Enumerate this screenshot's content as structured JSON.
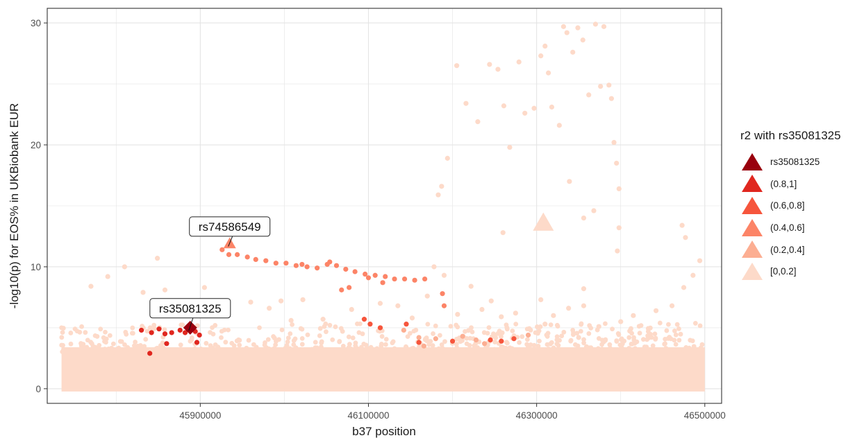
{
  "chart_data": {
    "type": "scatter",
    "xlabel": "b37 position",
    "ylabel": "-log10(p) for EOS% in UKBiobank EUR",
    "xlim": [
      45718000,
      46520000
    ],
    "ylim": [
      -1.2,
      31.2
    ],
    "x_ticks": [
      45900000,
      46100000,
      46300000,
      46500000
    ],
    "y_ticks": [
      0,
      10,
      20,
      30
    ],
    "grid": true,
    "legend_position": "right",
    "legend": {
      "title": "r2 with rs35081325",
      "entries": [
        {
          "label": "rs35081325",
          "color": "#99000d"
        },
        {
          "label": "(0.8,1]",
          "color": "#e0271f"
        },
        {
          "label": "(0.6,0.8]",
          "color": "#f6553c"
        },
        {
          "label": "(0.4,0.6]",
          "color": "#fc8467"
        },
        {
          "label": "(0.2,0.4]",
          "color": "#fcae92"
        },
        {
          "label": "[0,0.2]",
          "color": "#fddac9"
        }
      ]
    },
    "annotations": [
      {
        "text": "rs74586549",
        "x": 45935000,
        "y": 11.9,
        "label_y": 13.3
      },
      {
        "text": "rs35081325",
        "x": 45888000,
        "y": 5.0,
        "label_y": 6.6
      }
    ],
    "series": [
      {
        "group": "[0,0.2]",
        "color": "#fddac9",
        "points": [
          [
            45770000,
            8.4
          ],
          [
            45790000,
            9.2
          ],
          [
            45810000,
            10.0
          ],
          [
            45832000,
            7.9
          ],
          [
            45849000,
            10.7
          ],
          [
            45858000,
            8.1
          ],
          [
            45872000,
            6.7
          ],
          [
            45905000,
            8.3
          ],
          [
            45932000,
            6.2
          ],
          [
            45960000,
            7.1
          ],
          [
            45982000,
            6.6
          ],
          [
            45996000,
            7.2
          ],
          [
            46008000,
            5.6
          ],
          [
            46022000,
            7.3
          ],
          [
            46046000,
            5.7
          ],
          [
            46080000,
            6.5
          ],
          [
            46114000,
            7.0
          ],
          [
            46135000,
            6.8
          ],
          [
            46152000,
            5.8
          ],
          [
            46170000,
            7.6
          ],
          [
            46178000,
            10.0
          ],
          [
            46190000,
            9.3
          ],
          [
            46206000,
            6.1
          ],
          [
            46222000,
            8.4
          ],
          [
            46235000,
            6.5
          ],
          [
            46246000,
            7.2
          ],
          [
            46258000,
            5.9
          ],
          [
            46275000,
            6.2
          ],
          [
            46305000,
            7.3
          ],
          [
            46320000,
            6.0
          ],
          [
            46338000,
            6.6
          ],
          [
            46356000,
            6.8
          ],
          [
            46374000,
            5.1
          ],
          [
            46400000,
            5.5
          ],
          [
            46415000,
            6.0
          ],
          [
            46442000,
            6.4
          ],
          [
            46461000,
            6.8
          ],
          [
            46475000,
            8.3
          ],
          [
            46486000,
            9.3
          ],
          [
            46494000,
            10.5
          ],
          [
            46187000,
            16.6
          ],
          [
            46183000,
            15.9
          ],
          [
            46194000,
            18.9
          ],
          [
            46205000,
            26.5
          ],
          [
            46216000,
            23.4
          ],
          [
            46230000,
            21.9
          ],
          [
            46244000,
            26.6
          ],
          [
            46254000,
            26.2
          ],
          [
            46261000,
            23.2
          ],
          [
            46268000,
            19.8
          ],
          [
            46279000,
            26.8
          ],
          [
            46286000,
            22.6
          ],
          [
            46297000,
            23.0
          ],
          [
            46305000,
            27.3
          ],
          [
            46310000,
            28.1
          ],
          [
            46314000,
            25.9
          ],
          [
            46318000,
            23.1
          ],
          [
            46327000,
            21.6
          ],
          [
            46332000,
            29.7
          ],
          [
            46336000,
            29.2
          ],
          [
            46343000,
            27.6
          ],
          [
            46349000,
            29.6
          ],
          [
            46355000,
            28.6
          ],
          [
            46362000,
            24.1
          ],
          [
            46370000,
            29.9
          ],
          [
            46376000,
            24.8
          ],
          [
            46380000,
            29.7
          ],
          [
            46386000,
            24.9
          ],
          [
            46389000,
            23.8
          ],
          [
            46392000,
            20.2
          ],
          [
            46395000,
            18.5
          ],
          [
            46398000,
            16.4
          ],
          [
            46398000,
            13.2
          ],
          [
            46396000,
            11.3
          ],
          [
            46356000,
            14.0
          ],
          [
            46368000,
            14.6
          ],
          [
            46339000,
            17.0
          ],
          [
            46260000,
            12.8
          ],
          [
            46356000,
            8.2
          ],
          [
            46310000,
            5.3
          ],
          [
            46225000,
            3.2
          ],
          [
            46350000,
            4.2
          ],
          [
            46473000,
            13.4
          ],
          [
            46477000,
            12.4
          ]
        ]
      },
      {
        "group": "(0.8,1]",
        "color": "#e0271f",
        "points": [
          [
            45830000,
            4.8
          ],
          [
            45842000,
            4.6
          ],
          [
            45851000,
            4.9
          ],
          [
            45858000,
            4.5
          ],
          [
            45866000,
            4.6
          ],
          [
            45876000,
            4.8
          ],
          [
            45882000,
            4.6
          ],
          [
            45894000,
            4.7
          ],
          [
            45899000,
            4.4
          ],
          [
            45896000,
            3.8
          ],
          [
            45860000,
            3.7
          ],
          [
            45840000,
            2.9
          ]
        ]
      },
      {
        "group": "(0.6,0.8]",
        "color": "#f6553c",
        "points": [
          [
            46095000,
            5.7
          ],
          [
            46102000,
            5.3
          ],
          [
            46114000,
            5.0
          ],
          [
            46160000,
            3.8
          ],
          [
            46200000,
            3.9
          ],
          [
            46245000,
            4.0
          ],
          [
            46258000,
            3.9
          ],
          [
            46273000,
            4.1
          ],
          [
            46145000,
            5.3
          ]
        ]
      },
      {
        "group": "(0.4,0.6]",
        "color": "#fc8467",
        "points": [
          [
            45926000,
            11.4
          ],
          [
            45934000,
            11.0
          ],
          [
            45944000,
            11.0
          ],
          [
            45956000,
            10.8
          ],
          [
            45966000,
            10.6
          ],
          [
            45978000,
            10.5
          ],
          [
            45990000,
            10.3
          ],
          [
            46002000,
            10.3
          ],
          [
            46014000,
            10.1
          ],
          [
            46027000,
            10.0
          ],
          [
            46039000,
            9.9
          ],
          [
            46051000,
            10.2
          ],
          [
            46062000,
            10.1
          ],
          [
            46073000,
            9.8
          ],
          [
            46084000,
            9.6
          ],
          [
            46096000,
            9.4
          ],
          [
            46108000,
            9.3
          ],
          [
            46120000,
            9.2
          ],
          [
            46131000,
            9.0
          ],
          [
            46143000,
            9.0
          ],
          [
            46155000,
            8.9
          ],
          [
            46167000,
            9.0
          ],
          [
            46021000,
            10.2
          ],
          [
            46054000,
            10.4
          ],
          [
            46068000,
            8.1
          ],
          [
            46077000,
            8.3
          ],
          [
            46100000,
            9.1
          ],
          [
            46117000,
            8.7
          ],
          [
            46188000,
            7.8
          ],
          [
            46190000,
            6.8
          ]
        ]
      },
      {
        "group": "(0.2,0.4]",
        "color": "#fcae92",
        "points": [
          [
            46160000,
            4.2
          ],
          [
            46180000,
            4.1
          ],
          [
            46212000,
            4.3
          ],
          [
            46228000,
            4.0
          ],
          [
            46290000,
            4.4
          ],
          [
            46166000,
            3.5
          ],
          [
            46238000,
            3.7
          ],
          [
            46142000,
            4.8
          ]
        ]
      }
    ],
    "special": [
      {
        "name": "rs74586549",
        "shape": "triangle",
        "color": "#fc8467",
        "x": 45935000,
        "y": 11.9
      },
      {
        "name": "rs35081325",
        "shape": "diamond",
        "color": "#99000d",
        "x": 45888000,
        "y": 5.0
      },
      {
        "name": "lead-triangle",
        "shape": "triangle",
        "color": "#fddac9",
        "x": 46308000,
        "y": 13.6
      }
    ]
  }
}
